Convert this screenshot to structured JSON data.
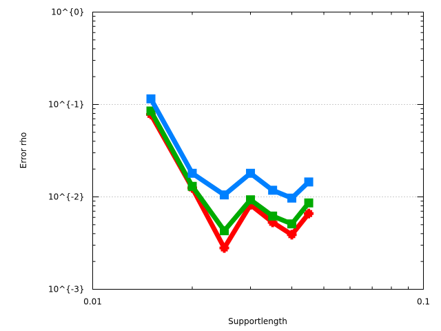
{
  "chart_data": {
    "type": "line",
    "title": "",
    "xlabel": "Supportlength",
    "ylabel": "Error rho",
    "xscale": "log",
    "yscale": "log",
    "xlim": [
      0.01,
      0.1
    ],
    "ylim": [
      0.001,
      1
    ],
    "xticks": [
      {
        "value": 0.01,
        "label": "0.01"
      },
      {
        "value": 0.1,
        "label": "0.1"
      }
    ],
    "yticks": [
      {
        "value": 1,
        "label": "10^{0}"
      },
      {
        "value": 0.1,
        "label": "10^{-1}"
      },
      {
        "value": 0.01,
        "label": "10^{-2}"
      },
      {
        "value": 0.001,
        "label": "10^{-3}"
      }
    ],
    "grid": "horizontal dotted at major y ticks",
    "legend": "none",
    "x": [
      0.015,
      0.02,
      0.025,
      0.03,
      0.035,
      0.04,
      0.045
    ],
    "series": [
      {
        "color": "#ff0000",
        "marker": "plus",
        "values": [
          0.078,
          0.0125,
          0.0028,
          0.0082,
          0.0053,
          0.0039,
          0.0066
        ]
      },
      {
        "color": "#00aa00",
        "marker": "square",
        "values": [
          0.085,
          0.013,
          0.0043,
          0.0093,
          0.0062,
          0.0051,
          0.0086
        ]
      },
      {
        "color": "#0080ff",
        "marker": "square",
        "values": [
          0.115,
          0.018,
          0.0105,
          0.018,
          0.0118,
          0.0097,
          0.0145
        ]
      }
    ]
  }
}
